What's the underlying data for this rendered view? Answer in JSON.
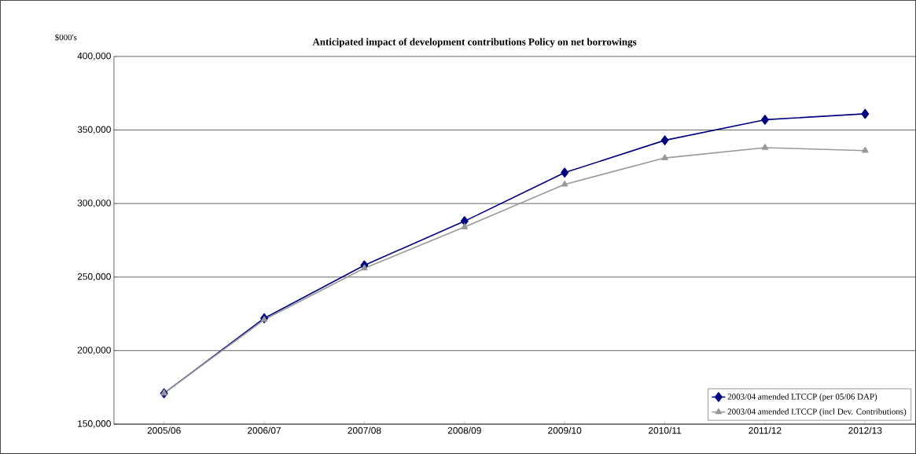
{
  "chart_data": {
    "type": "line",
    "title": "Anticipated impact of development contributions Policy on net borrowings",
    "ylabel": "$000's",
    "categories": [
      "2005/06",
      "2006/07",
      "2007/08",
      "2008/09",
      "2009/10",
      "2010/11",
      "2011/12",
      "2012/13"
    ],
    "series": [
      {
        "name": "2003/04 amended LTCCP (per 05/06 DAP)",
        "color": "#000080",
        "marker": "diamond",
        "values": [
          171000,
          222000,
          258000,
          288000,
          321000,
          343000,
          357000,
          361000
        ]
      },
      {
        "name": "2003/04 amended LTCCP (incl Dev. Contributions)",
        "color": "#999999",
        "marker": "triangle",
        "values": [
          171000,
          221000,
          256000,
          284000,
          313000,
          331000,
          338000,
          336000
        ]
      }
    ],
    "ylim": [
      150000,
      400000
    ],
    "yticks": [
      {
        "value": 150000,
        "label": "150,000"
      },
      {
        "value": 200000,
        "label": "200,000"
      },
      {
        "value": 250000,
        "label": "250,000"
      },
      {
        "value": 300000,
        "label": "300,000"
      },
      {
        "value": 350000,
        "label": "350,000"
      },
      {
        "value": 400000,
        "label": "400,000"
      }
    ],
    "grid": "y",
    "legend": "bottom right",
    "line_style": "solid"
  }
}
